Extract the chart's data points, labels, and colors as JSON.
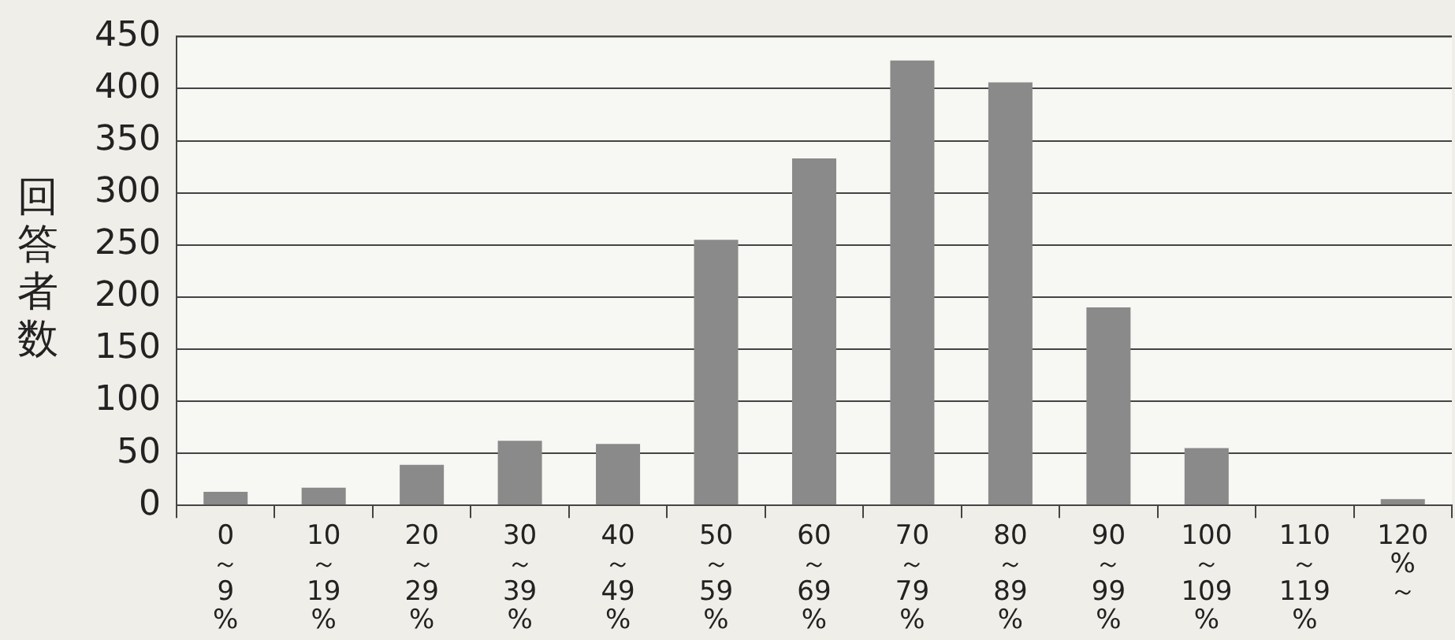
{
  "chart_data": {
    "type": "bar",
    "ylabel": "回答者数",
    "categories": [
      "0～9%",
      "10～19%",
      "20～29%",
      "30～39%",
      "40～49%",
      "50～59%",
      "60～69%",
      "70～79%",
      "80～89%",
      "90～99%",
      "100～109%",
      "110～119%",
      "120%～"
    ],
    "values": [
      13,
      17,
      39,
      62,
      59,
      255,
      333,
      427,
      406,
      190,
      55,
      0,
      6
    ],
    "color": "#8a8a8a",
    "ylim": [
      0,
      450
    ],
    "yticks": [
      0,
      50,
      100,
      150,
      200,
      250,
      300,
      350,
      400,
      450
    ],
    "grid": "y"
  }
}
